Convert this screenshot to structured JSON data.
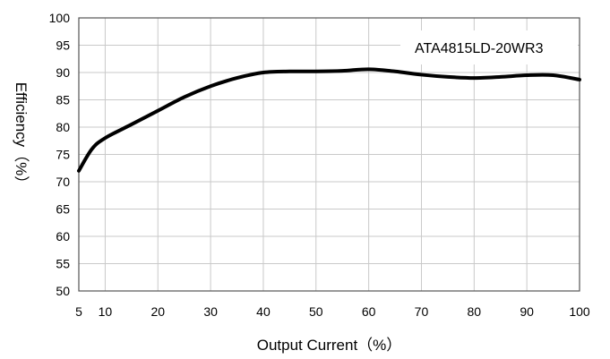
{
  "chart_data": {
    "type": "line",
    "title": "",
    "xlabel": "Output Current（%）",
    "ylabel": "Efficiency（%）",
    "xlim": [
      5,
      100
    ],
    "ylim": [
      50,
      100
    ],
    "x_ticks": [
      5,
      10,
      20,
      30,
      40,
      50,
      60,
      70,
      80,
      90,
      100
    ],
    "y_ticks": [
      50,
      55,
      60,
      65,
      70,
      75,
      80,
      85,
      90,
      95,
      100
    ],
    "grid": true,
    "legend_position": "top-right",
    "series": [
      {
        "name": "ATA4815LD-20WR3",
        "color": "#000000",
        "x": [
          5,
          7.5,
          10,
          15,
          20,
          25,
          30,
          35,
          40,
          45,
          50,
          55,
          60,
          65,
          70,
          75,
          80,
          85,
          90,
          95,
          100
        ],
        "y": [
          72,
          76,
          78,
          80.5,
          83,
          85.5,
          87.5,
          89,
          90,
          90.2,
          90.2,
          90.3,
          90.6,
          90.2,
          89.6,
          89.2,
          89,
          89.2,
          89.5,
          89.5,
          88.7
        ]
      }
    ]
  }
}
